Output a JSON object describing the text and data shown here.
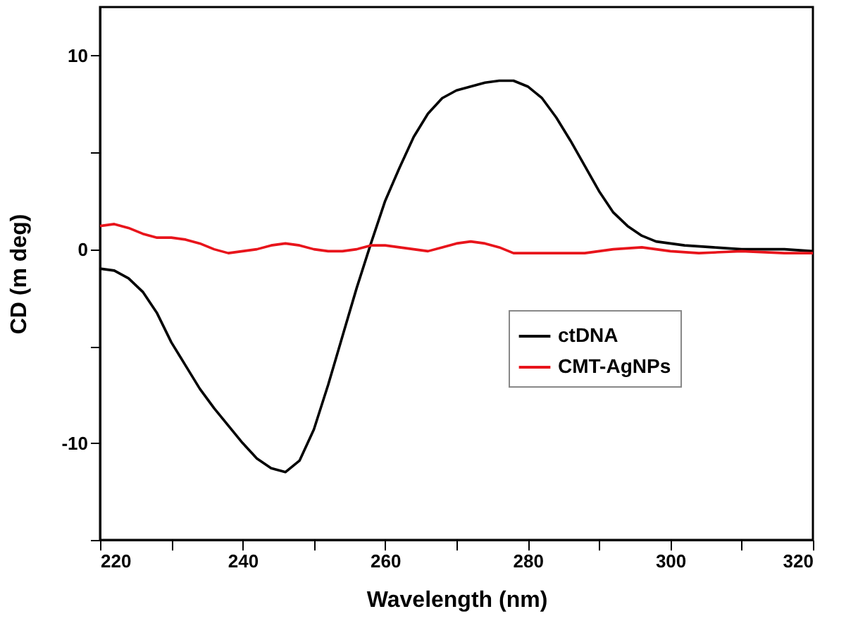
{
  "chart_data": {
    "type": "line",
    "xlabel": "Wavelength (nm)",
    "ylabel": "CD (m deg)",
    "xlim": [
      220,
      320
    ],
    "ylim": [
      -15,
      12.5
    ],
    "xticks": [
      220,
      {
        "value": 230,
        "label": null
      },
      240,
      {
        "value": 250,
        "label": null
      },
      260,
      {
        "value": 270,
        "label": null
      },
      280,
      {
        "value": 290,
        "label": null
      },
      300,
      {
        "value": 310,
        "label": null
      },
      320
    ],
    "yticks": [
      {
        "value": -15,
        "label": null
      },
      -10,
      {
        "value": -5,
        "label": null
      },
      0,
      {
        "value": 5,
        "label": null
      },
      10
    ],
    "grid": false,
    "legend": "right",
    "marker": "none",
    "line_style": "solid",
    "series": [
      {
        "name": "ctDNA",
        "color": "#000000",
        "x": [
          220,
          222,
          224,
          226,
          228,
          230,
          232,
          234,
          236,
          238,
          240,
          242,
          244,
          246,
          248,
          250,
          252,
          254,
          256,
          258,
          260,
          262,
          264,
          266,
          268,
          270,
          272,
          274,
          276,
          278,
          280,
          282,
          284,
          286,
          288,
          290,
          292,
          294,
          296,
          298,
          300,
          302,
          306,
          310,
          316,
          320
        ],
        "values": [
          -1.0,
          -1.1,
          -1.5,
          -2.2,
          -3.3,
          -4.8,
          -6.0,
          -7.2,
          -8.2,
          -9.1,
          -10.0,
          -10.8,
          -11.3,
          -11.5,
          -10.9,
          -9.3,
          -7.0,
          -4.5,
          -2.0,
          0.3,
          2.5,
          4.2,
          5.8,
          7.0,
          7.8,
          8.2,
          8.4,
          8.6,
          8.7,
          8.7,
          8.4,
          7.8,
          6.8,
          5.6,
          4.3,
          3.0,
          1.9,
          1.2,
          0.7,
          0.4,
          0.3,
          0.2,
          0.1,
          0.0,
          0.0,
          -0.1
        ]
      },
      {
        "name": "CMT-AgNPs",
        "color": "#e8141b",
        "x": [
          220,
          222,
          224,
          226,
          228,
          230,
          232,
          234,
          236,
          238,
          240,
          242,
          244,
          246,
          248,
          250,
          252,
          254,
          256,
          258,
          260,
          262,
          264,
          266,
          268,
          270,
          272,
          274,
          276,
          278,
          280,
          284,
          288,
          292,
          296,
          300,
          304,
          310,
          316,
          320
        ],
        "values": [
          1.2,
          1.3,
          1.1,
          0.8,
          0.6,
          0.6,
          0.5,
          0.3,
          0.0,
          -0.2,
          -0.1,
          0.0,
          0.2,
          0.3,
          0.2,
          0.0,
          -0.1,
          -0.1,
          0.0,
          0.2,
          0.2,
          0.1,
          0.0,
          -0.1,
          0.1,
          0.3,
          0.4,
          0.3,
          0.1,
          -0.2,
          -0.2,
          -0.2,
          -0.2,
          0.0,
          0.1,
          -0.1,
          -0.2,
          -0.1,
          -0.2,
          -0.2
        ]
      }
    ]
  }
}
